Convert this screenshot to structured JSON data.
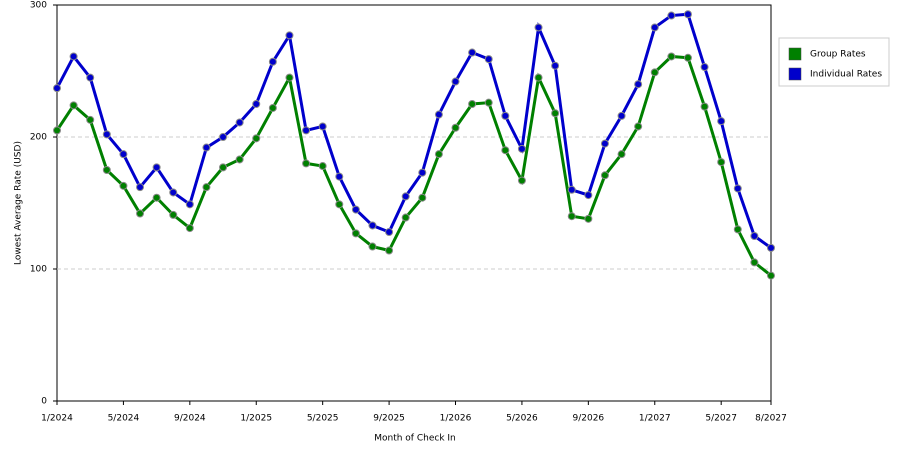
{
  "chart_data": {
    "type": "line",
    "x_label": "Month of Check In",
    "y_label": "Lowest Average Rate (USD)",
    "categories": [
      "1/2024",
      null,
      null,
      null,
      "5/2024",
      null,
      null,
      null,
      "9/2024",
      null,
      null,
      null,
      "1/2025",
      null,
      null,
      null,
      "5/2025",
      null,
      null,
      null,
      "9/2025",
      null,
      null,
      null,
      "1/2026",
      null,
      null,
      null,
      "5/2026",
      null,
      null,
      null,
      "9/2026",
      null,
      null,
      null,
      "1/2027",
      null,
      null,
      null,
      "5/2027",
      null,
      null,
      "8/2027"
    ],
    "series": [
      {
        "name": "Group Rates",
        "color": "#008000",
        "values": [
          205,
          224,
          213,
          175,
          163,
          142,
          154,
          141,
          131,
          162,
          177,
          183,
          199,
          222,
          245,
          180,
          178,
          149,
          127,
          117,
          114,
          139,
          154,
          187,
          207,
          225,
          226,
          190,
          167,
          245,
          218,
          140,
          138,
          171,
          187,
          208,
          249,
          261,
          260,
          223,
          181,
          130,
          105,
          95
        ]
      },
      {
        "name": "Individual Rates",
        "color": "#0000cc",
        "values": [
          237,
          261,
          245,
          202,
          187,
          162,
          177,
          158,
          149,
          192,
          200,
          211,
          225,
          257,
          277,
          205,
          208,
          170,
          145,
          133,
          128,
          155,
          173,
          217,
          242,
          264,
          259,
          216,
          191,
          283,
          254,
          160,
          156,
          195,
          216,
          240,
          283,
          292,
          293,
          253,
          212,
          161,
          125,
          116
        ]
      }
    ],
    "ylim": [
      0,
      300
    ],
    "yticks": [
      0,
      100,
      200,
      300
    ],
    "grid": true,
    "legend": "right"
  }
}
